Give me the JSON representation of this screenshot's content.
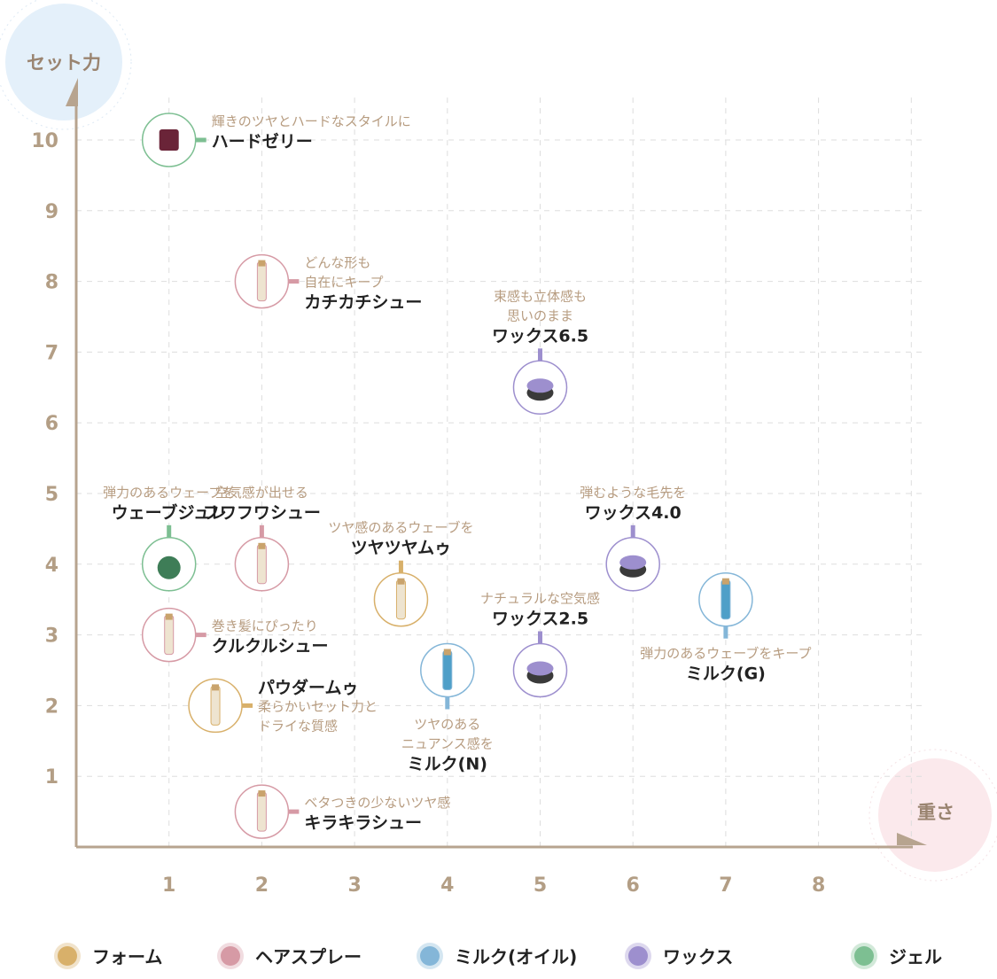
{
  "chart_data": {
    "type": "scatter",
    "xlabel": "重さ",
    "ylabel": "セット力",
    "xlim": [
      0,
      9
    ],
    "ylim": [
      0,
      10.5
    ],
    "x_ticks": [
      "1",
      "2",
      "3",
      "4",
      "5",
      "6",
      "7",
      "8"
    ],
    "y_ticks": [
      "1",
      "2",
      "3",
      "4",
      "5",
      "6",
      "7",
      "8",
      "9",
      "10"
    ],
    "grid": true,
    "legend_position": "bottom",
    "categories": [
      {
        "key": "foam",
        "label": "フォーム",
        "color": "#d8b06a"
      },
      {
        "key": "spray",
        "label": "ヘアスプレー",
        "color": "#d69aa5"
      },
      {
        "key": "milk",
        "label": "ミルク(オイル)",
        "color": "#84b6d8"
      },
      {
        "key": "wax",
        "label": "ワックス",
        "color": "#9d8fce"
      },
      {
        "key": "gel",
        "label": "ジェル",
        "color": "#7dbf92"
      }
    ],
    "points": [
      {
        "name": "ハードゼリー",
        "desc": [
          "輝きのツヤとハードなスタイルに"
        ],
        "x": 1,
        "y": 10,
        "category": "gel",
        "label_position": "right"
      },
      {
        "name": "カチカチシュー",
        "desc": [
          "どんな形も",
          "自在にキープ"
        ],
        "x": 2,
        "y": 8,
        "category": "spray",
        "label_position": "right"
      },
      {
        "name": "ワックス6.5",
        "desc": [
          "束感も立体感も",
          "思いのまま"
        ],
        "x": 5,
        "y": 6.5,
        "category": "wax",
        "label_position": "above"
      },
      {
        "name": "ウェーブジュレ",
        "desc": [
          "弾力のあるウェーブを"
        ],
        "x": 1,
        "y": 4,
        "category": "gel",
        "label_position": "above"
      },
      {
        "name": "フワフワシュー",
        "desc": [
          "空気感が出せる"
        ],
        "x": 2,
        "y": 4,
        "category": "spray",
        "label_position": "above"
      },
      {
        "name": "ツヤツヤムゥ",
        "desc": [
          "ツヤ感のあるウェーブを"
        ],
        "x": 3.5,
        "y": 3.5,
        "category": "foam",
        "label_position": "above"
      },
      {
        "name": "ワックス4.0",
        "desc": [
          "弾むような毛先を"
        ],
        "x": 6,
        "y": 4,
        "category": "wax",
        "label_position": "above"
      },
      {
        "name": "ミルク(G)",
        "desc": [
          "弾力のあるウェーブをキープ"
        ],
        "x": 7,
        "y": 3.5,
        "category": "milk",
        "label_position": "below"
      },
      {
        "name": "クルクルシュー",
        "desc": [
          "巻き髪にぴったり"
        ],
        "x": 1,
        "y": 3,
        "category": "spray",
        "label_position": "right"
      },
      {
        "name": "ワックス2.5",
        "desc": [
          "ナチュラルな空気感"
        ],
        "x": 5,
        "y": 2.5,
        "category": "wax",
        "label_position": "above"
      },
      {
        "name": "ミルク(N)",
        "desc": [
          "ツヤのある",
          "ニュアンス感を"
        ],
        "x": 4,
        "y": 2.5,
        "category": "milk",
        "label_position": "below"
      },
      {
        "name": "パウダームゥ",
        "desc": [
          "柔らかいセット力と",
          "ドライな質感"
        ],
        "x": 1.5,
        "y": 2,
        "category": "foam",
        "label_position": "right-name-first"
      },
      {
        "name": "キラキラシュー",
        "desc": [
          "ベタつきの少ないツヤ感"
        ],
        "x": 2,
        "y": 0.5,
        "category": "spray",
        "label_position": "right"
      }
    ]
  }
}
